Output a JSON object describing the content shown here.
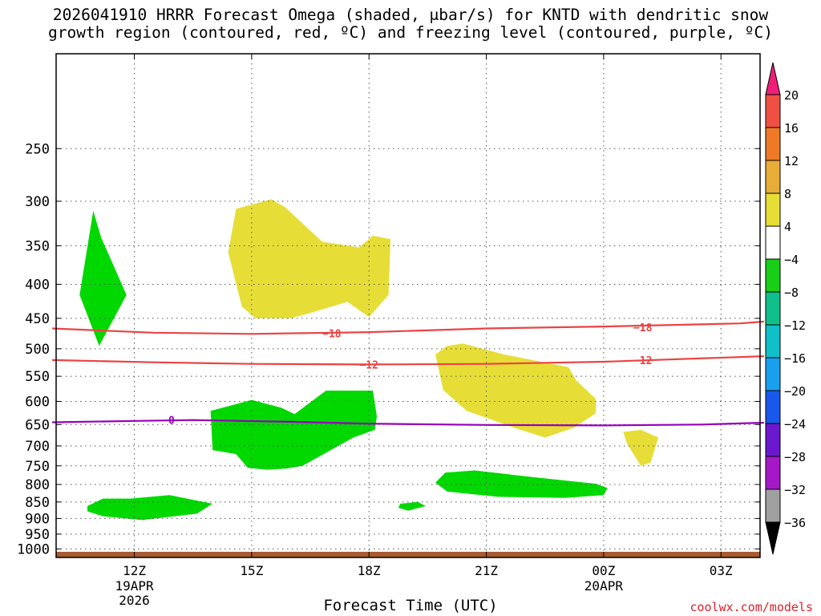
{
  "title_line1": "2026041910 HRRR Forecast Omega (shaded, μbar/s) for KNTD with dendritic snow",
  "title_line2": "growth region (contoured, red, ºC) and freezing level (contoured, purple, ºC)",
  "credit": "coolwx.com/models",
  "chart_data": {
    "type": "area",
    "xlabel": "Forecast Time (UTC)",
    "x_ticks": [
      {
        "hour": 12,
        "label": "12Z",
        "sub": [
          "19APR",
          "2026"
        ]
      },
      {
        "hour": 15,
        "label": "15Z",
        "sub": []
      },
      {
        "hour": 18,
        "label": "18Z",
        "sub": []
      },
      {
        "hour": 21,
        "label": "21Z",
        "sub": []
      },
      {
        "hour": 24,
        "label": "00Z",
        "sub": [
          "20APR"
        ]
      },
      {
        "hour": 27,
        "label": "03Z",
        "sub": []
      }
    ],
    "x_range_hours": [
      10,
      28
    ],
    "y_axis": {
      "scale": "log-pressure",
      "range_hPa": [
        1030,
        180
      ],
      "ticks": [
        250,
        300,
        350,
        400,
        450,
        500,
        550,
        600,
        650,
        700,
        750,
        800,
        850,
        900,
        950,
        1000
      ]
    },
    "grid": true,
    "colorbar": {
      "levels": [
        20,
        16,
        12,
        8,
        4,
        -4,
        -8,
        -12,
        -16,
        -20,
        -24,
        -28,
        -32,
        -36
      ],
      "colors": [
        "#ee1f78",
        "#f05044",
        "#ee7a28",
        "#e8ac38",
        "#e6de36",
        "#ffffff",
        "#18ce18",
        "#10c08a",
        "#10c0c8",
        "#18a0ee",
        "#1858ec",
        "#6a18d0",
        "#a418c8",
        "#a0a0a0",
        "#000000"
      ]
    },
    "omega_shading": [
      {
        "value_range": [
          -8,
          -4
        ],
        "color": "#00d800",
        "points": [
          [
            10.95,
            310
          ],
          [
            11.15,
            340
          ],
          [
            11.8,
            415
          ],
          [
            11.1,
            495
          ],
          [
            10.6,
            415
          ]
        ]
      },
      {
        "value_range": [
          -8,
          -4
        ],
        "color": "#00d800",
        "points": [
          [
            10.8,
            862
          ],
          [
            11.2,
            840
          ],
          [
            11.9,
            840
          ],
          [
            12.9,
            830
          ],
          [
            14.0,
            855
          ],
          [
            13.6,
            885
          ],
          [
            12.2,
            905
          ],
          [
            11.2,
            893
          ],
          [
            10.8,
            878
          ]
        ]
      },
      {
        "value_range": [
          -8,
          -4
        ],
        "color": "#00d800",
        "points": [
          [
            13.95,
            620
          ],
          [
            15.0,
            597
          ],
          [
            15.75,
            613
          ],
          [
            16.1,
            627
          ],
          [
            16.9,
            578
          ],
          [
            18.1,
            578
          ],
          [
            18.2,
            632
          ],
          [
            18.15,
            662
          ],
          [
            17.6,
            680
          ],
          [
            16.3,
            750
          ],
          [
            15.9,
            757
          ],
          [
            15.4,
            760
          ],
          [
            14.9,
            755
          ],
          [
            14.6,
            720
          ],
          [
            14.0,
            710
          ]
        ]
      },
      {
        "value_range": [
          -8,
          -4
        ],
        "color": "#00d800",
        "points": [
          [
            18.8,
            855
          ],
          [
            19.25,
            850
          ],
          [
            19.45,
            862
          ],
          [
            19.0,
            876
          ],
          [
            18.75,
            867
          ]
        ]
      },
      {
        "value_range": [
          -8,
          -4
        ],
        "color": "#00d800",
        "points": [
          [
            19.7,
            795
          ],
          [
            19.95,
            768
          ],
          [
            20.7,
            762
          ],
          [
            22.2,
            780
          ],
          [
            23.8,
            798
          ],
          [
            24.1,
            810
          ],
          [
            24.0,
            830
          ],
          [
            23.0,
            838
          ],
          [
            21.3,
            835
          ],
          [
            20.0,
            820
          ]
        ]
      },
      {
        "value_range": [
          4,
          8
        ],
        "color": "#e6de36",
        "points": [
          [
            15.5,
            298
          ],
          [
            15.85,
            306
          ],
          [
            16.8,
            345
          ],
          [
            17.75,
            352
          ],
          [
            18.1,
            338
          ],
          [
            18.55,
            342
          ],
          [
            18.5,
            415
          ],
          [
            18.0,
            448
          ],
          [
            17.45,
            425
          ],
          [
            16.6,
            440
          ],
          [
            16.0,
            450
          ],
          [
            15.1,
            450
          ],
          [
            14.75,
            432
          ],
          [
            14.4,
            358
          ],
          [
            14.6,
            308
          ]
        ]
      },
      {
        "value_range": [
          4,
          8
        ],
        "color": "#e6de36",
        "points": [
          [
            20.0,
            495
          ],
          [
            20.4,
            491
          ],
          [
            21.45,
            510
          ],
          [
            23.1,
            533
          ],
          [
            23.3,
            558
          ],
          [
            23.8,
            595
          ],
          [
            23.8,
            625
          ],
          [
            23.25,
            657
          ],
          [
            22.5,
            680
          ],
          [
            21.8,
            660
          ],
          [
            20.5,
            620
          ],
          [
            19.9,
            577
          ],
          [
            19.7,
            510
          ]
        ]
      },
      {
        "value_range": [
          4,
          8
        ],
        "color": "#e6de36",
        "points": [
          [
            24.5,
            667
          ],
          [
            24.95,
            662
          ],
          [
            25.4,
            680
          ],
          [
            25.2,
            742
          ],
          [
            24.95,
            750
          ],
          [
            24.6,
            695
          ]
        ]
      }
    ],
    "contours": [
      {
        "value": -18,
        "color": "#ea4444",
        "label": "−18",
        "points": [
          [
            9.9,
            466
          ],
          [
            12.5,
            473
          ],
          [
            15.0,
            475
          ],
          [
            18.0,
            472
          ],
          [
            21.0,
            466
          ],
          [
            24.0,
            463
          ],
          [
            27.5,
            458
          ],
          [
            28.1,
            455
          ]
        ],
        "label_at": [
          [
            17.05,
            474
          ],
          [
            25.0,
            464
          ]
        ]
      },
      {
        "value": -12,
        "color": "#ea4444",
        "label": "−12",
        "points": [
          [
            9.9,
            520
          ],
          [
            12.5,
            524
          ],
          [
            15.0,
            527
          ],
          [
            18.0,
            528
          ],
          [
            21.0,
            527
          ],
          [
            24.0,
            523
          ],
          [
            28.1,
            513
          ]
        ],
        "label_at": [
          [
            18.0,
            528
          ],
          [
            25.0,
            520
          ]
        ]
      },
      {
        "value": 0,
        "color": "#9600bb",
        "label": "0",
        "points": [
          [
            9.9,
            645
          ],
          [
            12.0,
            642
          ],
          [
            13.5,
            640
          ],
          [
            16.0,
            644
          ],
          [
            18.0,
            648
          ],
          [
            21.0,
            651
          ],
          [
            24.0,
            652
          ],
          [
            26.5,
            650
          ],
          [
            28.1,
            646
          ]
        ],
        "label_at": [
          [
            12.95,
            640
          ]
        ]
      }
    ],
    "terrain": {
      "color": "#a85a30",
      "from_hPa": 1032,
      "to_hPa": 1010
    }
  }
}
